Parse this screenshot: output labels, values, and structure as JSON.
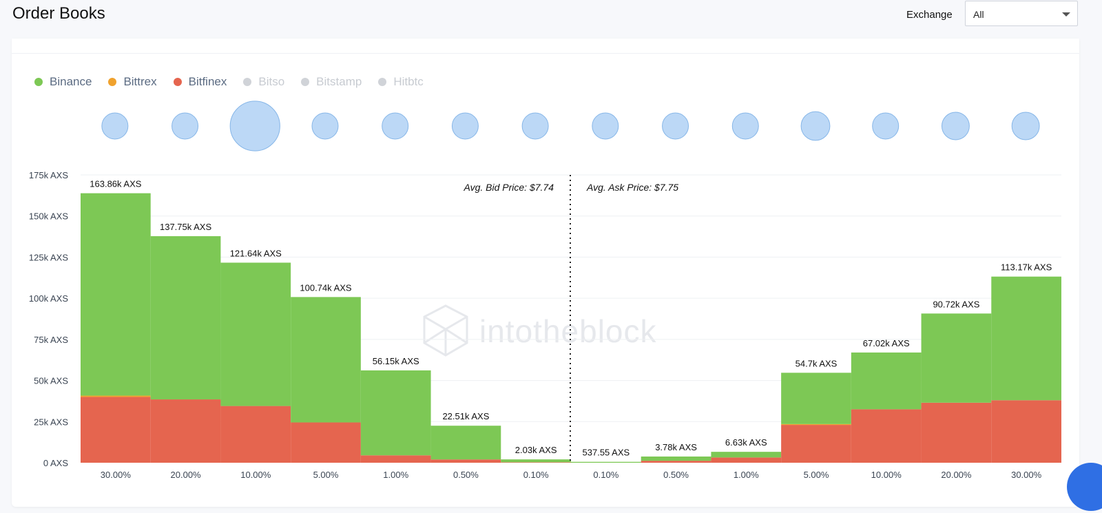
{
  "header": {
    "title": "Order Books",
    "exchange_label": "Exchange",
    "exchange_value": "All"
  },
  "watermark": "intotheblock",
  "chart_data": {
    "type": "bar",
    "stacked": true,
    "legend": [
      {
        "name": "Binance",
        "color": "#7dc855",
        "active": true
      },
      {
        "name": "Bittrex",
        "color": "#f0a22e",
        "active": true
      },
      {
        "name": "Bitfinex",
        "color": "#e5654f",
        "active": true
      },
      {
        "name": "Bitso",
        "color": "#d0d3d8",
        "active": false
      },
      {
        "name": "Bitstamp",
        "color": "#d0d3d8",
        "active": false
      },
      {
        "name": "Hitbtc",
        "color": "#d0d3d8",
        "active": false
      }
    ],
    "categories": [
      "30.00%",
      "20.00%",
      "10.00%",
      "5.00%",
      "1.00%",
      "0.50%",
      "0.10%",
      "0.10%",
      "0.50%",
      "1.00%",
      "5.00%",
      "10.00%",
      "20.00%",
      "30.00%"
    ],
    "totals_label": [
      "163.86k AXS",
      "137.75k AXS",
      "121.64k AXS",
      "100.74k AXS",
      "56.15k AXS",
      "22.51k AXS",
      "2.03k AXS",
      "537.55 AXS",
      "3.78k AXS",
      "6.63k AXS",
      "54.7k AXS",
      "67.02k AXS",
      "90.72k AXS",
      "113.17k AXS"
    ],
    "totals": [
      163860,
      137750,
      121640,
      100740,
      56150,
      22510,
      2030,
      537.55,
      3780,
      6630,
      54700,
      67020,
      90720,
      113170
    ],
    "series": [
      {
        "name": "Bitfinex",
        "values": [
          40000,
          38500,
          34500,
          24500,
          4500,
          2000,
          300,
          0,
          1200,
          3200,
          23000,
          32500,
          36500,
          38000
        ]
      },
      {
        "name": "Bittrex",
        "values": [
          800,
          0,
          0,
          0,
          0,
          0,
          0,
          0,
          0,
          0,
          500,
          0,
          0,
          0
        ]
      },
      {
        "name": "Binance",
        "values": [
          123060,
          99250,
          87140,
          76240,
          51650,
          20510,
          1730,
          537.55,
          2580,
          3430,
          31200,
          34520,
          54220,
          75170
        ]
      }
    ],
    "bubble_relative_size": [
      1,
      1,
      1.9,
      1,
      1,
      1,
      1,
      1,
      1,
      1,
      1.1,
      1,
      1.05,
      1.05
    ],
    "ylim": [
      0,
      175000
    ],
    "y_ticks": [
      0,
      25000,
      50000,
      75000,
      100000,
      125000,
      150000,
      175000
    ],
    "y_tick_labels": [
      "0 AXS",
      "25k AXS",
      "50k AXS",
      "75k AXS",
      "100k AXS",
      "125k AXS",
      "150k AXS",
      "175k AXS"
    ],
    "annotations": {
      "bid": "Avg. Bid Price: $7.74",
      "ask": "Avg. Ask Price: $7.75"
    },
    "grid": true
  }
}
